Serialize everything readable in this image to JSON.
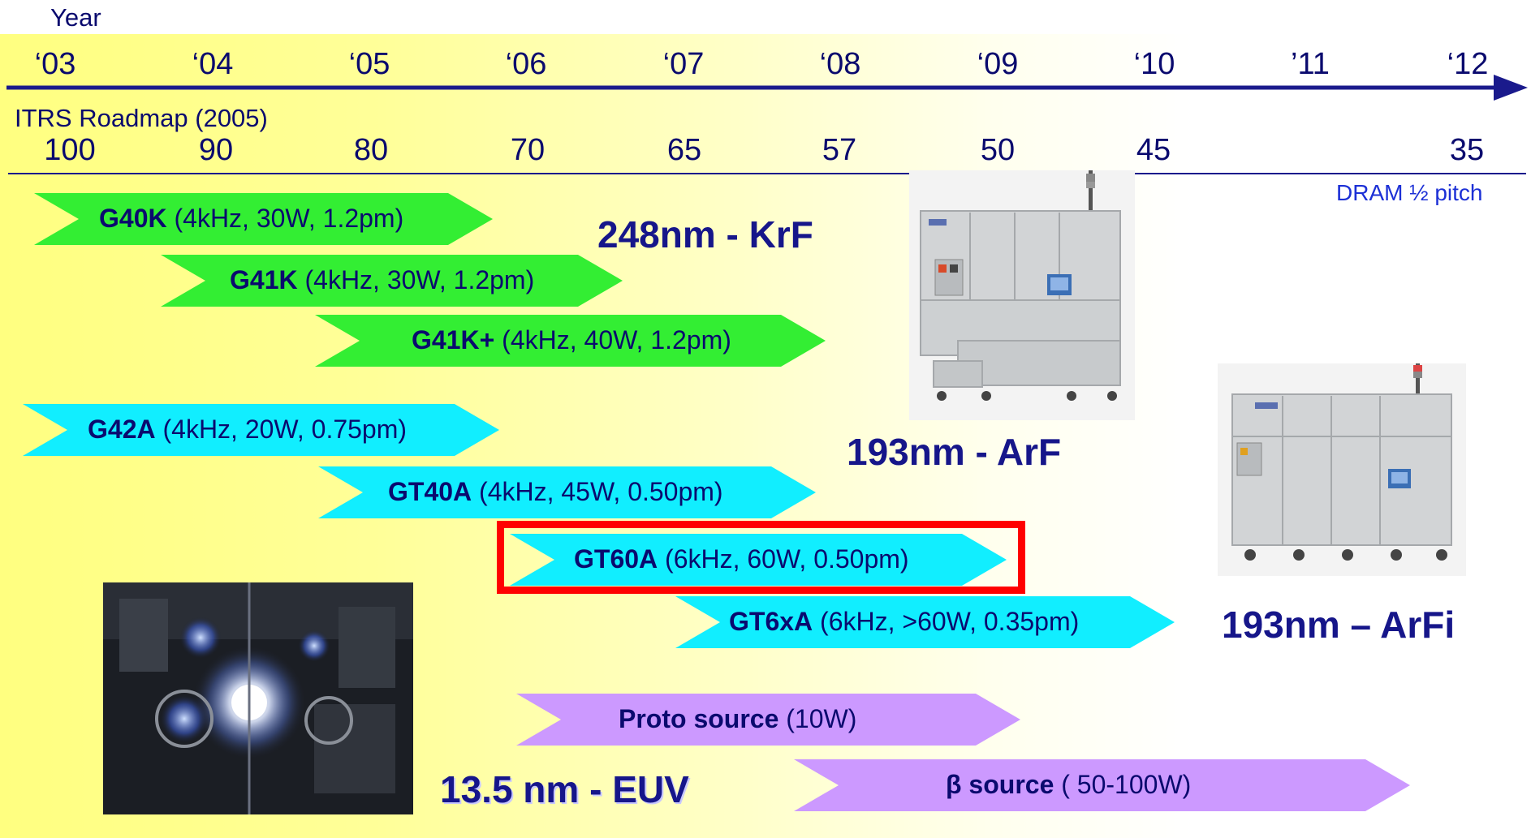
{
  "axis": {
    "year_label": "Year",
    "years": [
      "‘03",
      "‘04",
      "‘05",
      "‘06",
      "‘07",
      "‘08",
      "‘09",
      "‘10",
      "’11",
      "‘12"
    ],
    "roadmap_label": "ITRS Roadmap (2005)",
    "half_pitch": [
      "100",
      "90",
      "80",
      "70",
      "65",
      "57",
      "50",
      "45",
      "35"
    ],
    "half_pitch_label": "DRAM ½ pitch"
  },
  "bars": [
    {
      "name": "G40K",
      "spec": " (4kHz, 30W, 1.2pm)",
      "color": "#33ee33"
    },
    {
      "name": "G41K",
      "spec": " (4kHz, 30W, 1.2pm)",
      "color": "#33ee33"
    },
    {
      "name": "G41K+",
      "spec": " (4kHz, 40W, 1.2pm)",
      "color": "#33ee33"
    },
    {
      "name": "G42A",
      "spec": " (4kHz, 20W, 0.75pm)",
      "color": "#11eeff"
    },
    {
      "name": "GT40A",
      "spec": " (4kHz, 45W, 0.50pm)",
      "color": "#11eeff"
    },
    {
      "name": "GT60A",
      "spec": " (6kHz, 60W, 0.50pm)",
      "color": "#11eeff"
    },
    {
      "name": "GT6xA",
      "spec": " (6kHz, >60W, 0.35pm)",
      "color": "#11eeff"
    },
    {
      "name": "Proto source",
      "spec": " (10W)",
      "color": "#cc99ff"
    },
    {
      "name": "β source",
      "spec": " ( 50-100W)",
      "color": "#cc99ff"
    }
  ],
  "tech_labels": {
    "krf": "248nm - KrF",
    "arf": "193nm - ArF",
    "arfi": "193nm – ArFi",
    "euv": "13.5 nm - EUV"
  },
  "colors": {
    "axis": "#1a1a8c",
    "highlight": "#ff0000",
    "krf_bar": "#33ee33",
    "arf_bar": "#11eeff",
    "euv_bar": "#cc99ff"
  }
}
